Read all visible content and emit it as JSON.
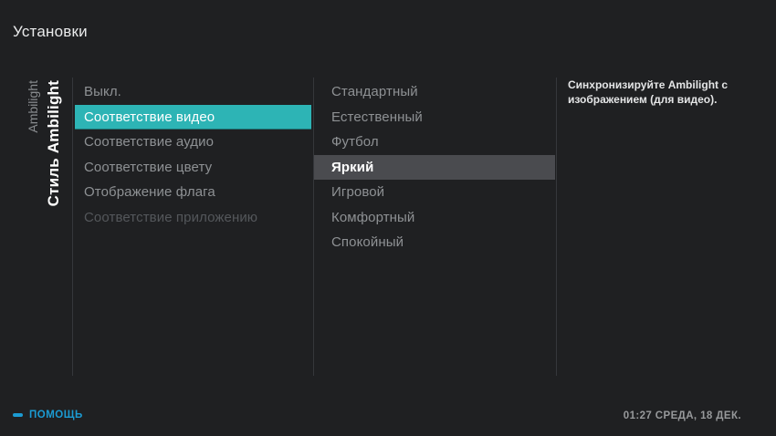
{
  "header": {
    "title": "Установки"
  },
  "sidebar": {
    "section_label": "Ambilight",
    "current_label": "Стиль Ambilight"
  },
  "menu": {
    "items": [
      {
        "label": "Выкл.",
        "state": "normal"
      },
      {
        "label": "Соответствие видео",
        "state": "selected"
      },
      {
        "label": "Соответствие аудио",
        "state": "normal"
      },
      {
        "label": "Соответствие цвету",
        "state": "normal"
      },
      {
        "label": "Отображение флага",
        "state": "normal"
      },
      {
        "label": "Соответствие приложению",
        "state": "disabled"
      }
    ]
  },
  "submenu": {
    "items": [
      {
        "label": "Стандартный",
        "state": "normal"
      },
      {
        "label": "Естественный",
        "state": "normal"
      },
      {
        "label": "Футбол",
        "state": "normal"
      },
      {
        "label": "Яркий",
        "state": "focused"
      },
      {
        "label": "Игровой",
        "state": "normal"
      },
      {
        "label": "Комфортный",
        "state": "normal"
      },
      {
        "label": "Спокойный",
        "state": "normal"
      }
    ]
  },
  "description": {
    "text": "Синхронизируйте Ambilight с изображением (для видео)."
  },
  "footer": {
    "help_label": "ПОМОЩЬ",
    "clock": "01:27 СРЕДА, 18 ДЕК."
  },
  "colors": {
    "accent": "#2db4b5",
    "focus": "#4a4b4f",
    "blue": "#1b9bd3"
  }
}
